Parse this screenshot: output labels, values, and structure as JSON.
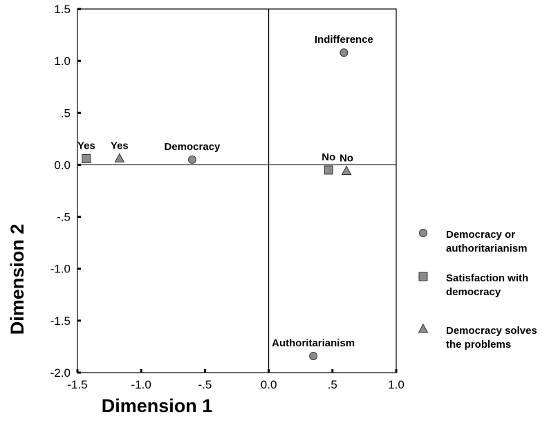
{
  "chart_data": {
    "type": "scatter",
    "xlabel": "Dimension 1",
    "ylabel": "Dimension 2",
    "xlim": [
      -1.5,
      1.0
    ],
    "ylim": [
      -2.0,
      1.5
    ],
    "xticks": [
      "-1.5",
      "-1.0",
      "-.5",
      "0.0",
      ".5",
      "1.0"
    ],
    "xtick_values": [
      -1.5,
      -1.0,
      -0.5,
      0.0,
      0.5,
      1.0
    ],
    "yticks": [
      "1.5",
      "1.0",
      ".5",
      "0.0",
      "-.5",
      "-1.0",
      "-1.5",
      "-2.0"
    ],
    "ytick_values": [
      1.5,
      1.0,
      0.5,
      0.0,
      -0.5,
      -1.0,
      -1.5,
      -2.0
    ],
    "reference_lines": {
      "x": 0.0,
      "y": 0.0
    },
    "grid": false,
    "legend_position": "right",
    "marker_color": "#8c8c8c",
    "series": [
      {
        "name": "Democracy or authoritarianism",
        "marker": "circle",
        "points": [
          {
            "label": "Indifference",
            "x": 0.59,
            "y": 1.08
          },
          {
            "label": "Democracy",
            "x": -0.6,
            "y": 0.05
          },
          {
            "label": "Authoritarianism",
            "x": 0.35,
            "y": -1.84
          }
        ]
      },
      {
        "name": "Satisfaction with democracy",
        "marker": "square",
        "points": [
          {
            "label": "Yes",
            "x": -1.43,
            "y": 0.06
          },
          {
            "label": "No",
            "x": 0.47,
            "y": -0.05
          }
        ]
      },
      {
        "name": "Democracy solves the problems",
        "marker": "triangle",
        "points": [
          {
            "label": "Yes",
            "x": -1.17,
            "y": 0.06
          },
          {
            "label": "No",
            "x": 0.61,
            "y": -0.06
          }
        ]
      }
    ],
    "legend": [
      {
        "marker": "circle",
        "lines": [
          "Democracy or",
          "authoritarianism"
        ]
      },
      {
        "marker": "square",
        "lines": [
          "Satisfaction with",
          "democracy"
        ]
      },
      {
        "marker": "triangle",
        "lines": [
          "Democracy solves",
          "the problems"
        ]
      }
    ]
  }
}
